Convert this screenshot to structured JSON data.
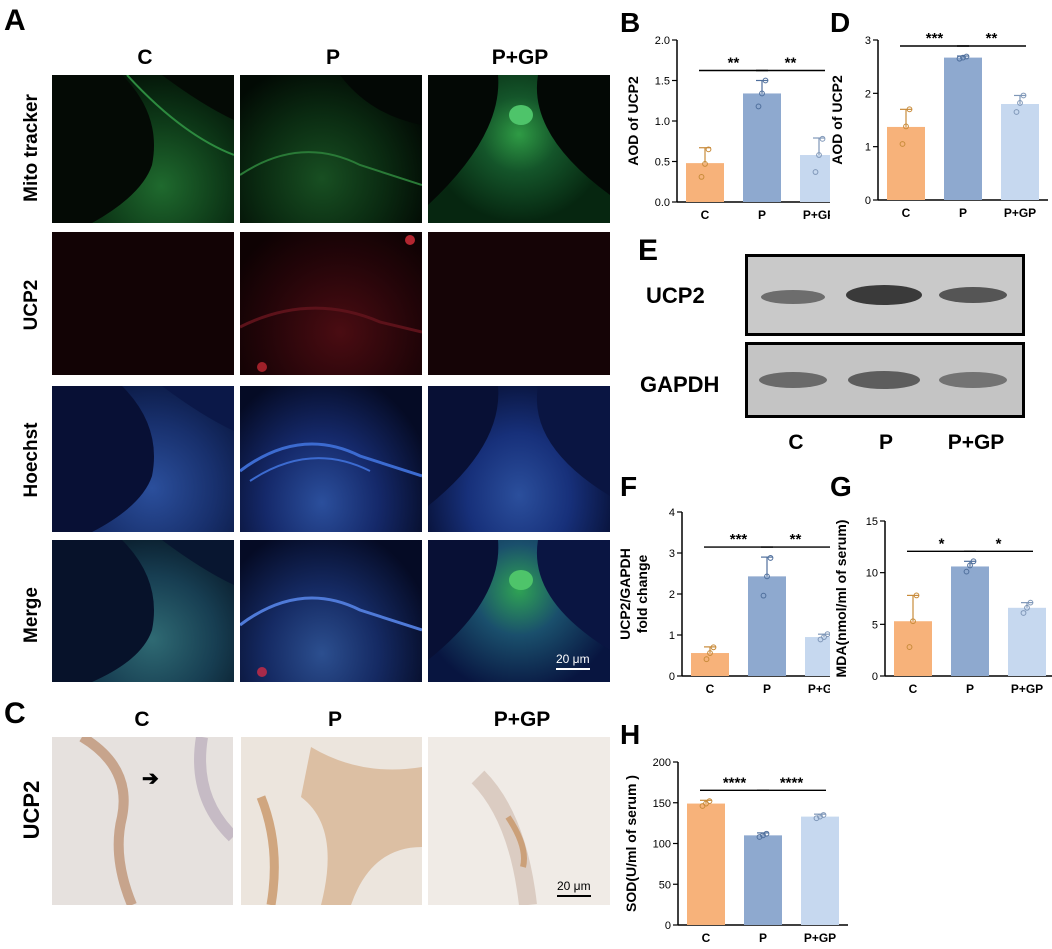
{
  "panelA": {
    "letter": "A",
    "columns": [
      "C",
      "P",
      "P+GP"
    ],
    "rows": [
      "Mito tracker",
      "UCP2",
      "Hoechst",
      "Merge"
    ],
    "scale_bar": "20 μm"
  },
  "panelC": {
    "letter": "C",
    "columns": [
      "C",
      "P",
      "P+GP"
    ],
    "row": "UCP2",
    "scale_bar": "20 μm"
  },
  "panelE": {
    "letter": "E",
    "rows": [
      "UCP2",
      "GAPDH"
    ],
    "columns": [
      "C",
      "P",
      "P+GP"
    ]
  },
  "colors": {
    "C": "#f7b27a",
    "P": "#8ea9cf",
    "PGP": "#c6d8ef",
    "C_point": "#c88b3a",
    "P_point": "#4f6f9c",
    "PGP_point": "#7f97b8"
  },
  "chart_data": [
    {
      "id": "B",
      "letter": "B",
      "type": "bar",
      "categories": [
        "C",
        "P",
        "P+GP"
      ],
      "values": [
        0.48,
        1.34,
        0.58
      ],
      "errors": [
        0.19,
        0.16,
        0.21
      ],
      "points": [
        [
          0.31,
          0.47,
          0.65
        ],
        [
          1.18,
          1.34,
          1.5
        ],
        [
          0.37,
          0.58,
          0.78
        ]
      ],
      "ylabel": "AOD of UCP2",
      "ylim": [
        0,
        2.0
      ],
      "yticks": [
        "0.0",
        "0.5",
        "1.0",
        "1.5",
        "2.0"
      ],
      "ytick_values": [
        0,
        0.5,
        1.0,
        1.5,
        2.0
      ],
      "significance": [
        {
          "from": 0,
          "to": 1,
          "label": "**"
        },
        {
          "from": 1,
          "to": 2,
          "label": "**"
        }
      ]
    },
    {
      "id": "D",
      "letter": "D",
      "type": "bar",
      "categories": [
        "C",
        "P",
        "P+GP"
      ],
      "values": [
        1.37,
        2.67,
        1.8
      ],
      "errors": [
        0.33,
        0.03,
        0.16
      ],
      "points": [
        [
          1.05,
          1.38,
          1.7
        ],
        [
          2.65,
          2.67,
          2.69
        ],
        [
          1.65,
          1.82,
          1.96
        ]
      ],
      "ylabel": "AOD of UCP2",
      "ylim": [
        0,
        3
      ],
      "yticks": [
        "0",
        "1",
        "2",
        "3"
      ],
      "ytick_values": [
        0,
        1,
        2,
        3
      ],
      "significance": [
        {
          "from": 0,
          "to": 1,
          "label": "***"
        },
        {
          "from": 1,
          "to": 2,
          "label": "**"
        }
      ]
    },
    {
      "id": "F",
      "letter": "F",
      "type": "bar",
      "categories": [
        "C",
        "P",
        "P+GP"
      ],
      "values": [
        0.56,
        2.43,
        0.95
      ],
      "errors": [
        0.15,
        0.47,
        0.07
      ],
      "points": [
        [
          0.41,
          0.56,
          0.7
        ],
        [
          1.96,
          2.43,
          2.88
        ],
        [
          0.89,
          0.95,
          1.02
        ]
      ],
      "ylabel": "UCP2/GAPDH fold change",
      "ylabel_lines": [
        "UCP2/GAPDH",
        "fold change"
      ],
      "ylim": [
        0,
        4
      ],
      "yticks": [
        "0",
        "1",
        "2",
        "3",
        "4"
      ],
      "ytick_values": [
        0,
        1,
        2,
        3,
        4
      ],
      "significance": [
        {
          "from": 0,
          "to": 1,
          "label": "***"
        },
        {
          "from": 1,
          "to": 2,
          "label": "**"
        }
      ]
    },
    {
      "id": "G",
      "letter": "G",
      "type": "bar",
      "categories": [
        "C",
        "P",
        "P+GP"
      ],
      "values": [
        5.3,
        10.6,
        6.6
      ],
      "errors": [
        2.5,
        0.5,
        0.5
      ],
      "points": [
        [
          2.8,
          5.3,
          7.8
        ],
        [
          10.1,
          10.7,
          11.1
        ],
        [
          6.1,
          6.6,
          7.1
        ]
      ],
      "ylabel": "MDA(nmol/ml of serum)",
      "ylim": [
        0,
        15
      ],
      "yticks": [
        "0",
        "5",
        "10",
        "15"
      ],
      "ytick_values": [
        0,
        5,
        10,
        15
      ],
      "significance": [
        {
          "from": 0,
          "to": 1,
          "label": "*"
        },
        {
          "from": 1,
          "to": 2,
          "label": "*"
        }
      ]
    },
    {
      "id": "H",
      "letter": "H",
      "type": "bar",
      "categories": [
        "C",
        "P",
        "P+GP"
      ],
      "values": [
        149,
        110,
        133
      ],
      "errors": [
        4,
        3,
        3
      ],
      "points": [
        [
          146,
          149,
          152
        ],
        [
          108,
          110,
          112
        ],
        [
          131,
          133,
          135
        ]
      ],
      "ylabel": "SOD(U/ml of serum )",
      "ylim": [
        0,
        200
      ],
      "yticks": [
        "0",
        "50",
        "100",
        "150",
        "200"
      ],
      "ytick_values": [
        0,
        50,
        100,
        150,
        200
      ],
      "significance": [
        {
          "from": 0,
          "to": 1,
          "label": "****"
        },
        {
          "from": 1,
          "to": 2,
          "label": "****"
        }
      ]
    }
  ]
}
